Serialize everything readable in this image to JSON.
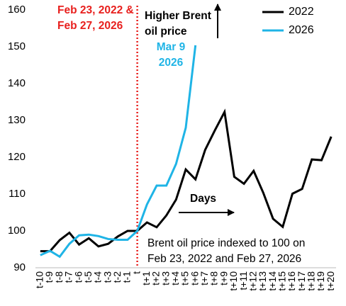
{
  "chart_data": {
    "type": "line",
    "categories": [
      "t-10",
      "t-9",
      "t-8",
      "t-7",
      "t-6",
      "t-5",
      "t-4",
      "t-3",
      "t-2",
      "t-1",
      "t",
      "t+1",
      "t+2",
      "t+3",
      "t+4",
      "t+5",
      "t+6",
      "t+7",
      "t+8",
      "t+9",
      "t+10",
      "t+11",
      "t+12",
      "t+13",
      "t+14",
      "t+15",
      "t+16",
      "t+17",
      "t+18",
      "t+19",
      "t+20"
    ],
    "series": [
      {
        "name": "2022",
        "color": "#000000",
        "values": [
          94.5,
          94.5,
          97.5,
          99.5,
          96.3,
          98,
          95.8,
          96.5,
          98.5,
          100,
          100,
          102.3,
          101,
          104.2,
          108.5,
          116.7,
          114,
          122,
          127.3,
          132.3,
          114.7,
          112.8,
          116.3,
          110.3,
          103.3,
          101.1,
          110.1,
          111.4,
          119.4,
          119.2,
          125.6
        ]
      },
      {
        "name": "2026",
        "color": "#1fb4e6",
        "values": [
          93.4,
          94.6,
          93,
          96.5,
          98.8,
          99,
          98.6,
          97.8,
          97.6,
          97.6,
          100,
          107.2,
          112.3,
          112.3,
          118.2,
          128,
          150.4,
          null,
          null,
          null,
          null,
          null,
          null,
          null,
          null,
          null,
          null,
          null,
          null,
          null,
          null
        ]
      }
    ],
    "ylim": [
      90,
      160
    ],
    "yticks": [
      90,
      100,
      110,
      120,
      130,
      140,
      150,
      160
    ],
    "grid": false,
    "legend": "upper right",
    "annotations": [
      {
        "lines": [
          "Feb 23, 2022 &",
          "Feb 27, 2026"
        ],
        "color": "#e8201e"
      },
      {
        "lines": [
          "Higher Brent",
          "oil price"
        ],
        "color": "#000000"
      },
      {
        "lines": [
          "Mar 9",
          "2026"
        ],
        "color": "#1fb4e6"
      },
      {
        "lines": [
          "Days"
        ],
        "color": "#000000"
      },
      {
        "lines": [
          "Brent oil price indexed to 100 on",
          "Feb 23, 2022 and Feb 27, 2026"
        ],
        "color": "#000000"
      }
    ]
  }
}
